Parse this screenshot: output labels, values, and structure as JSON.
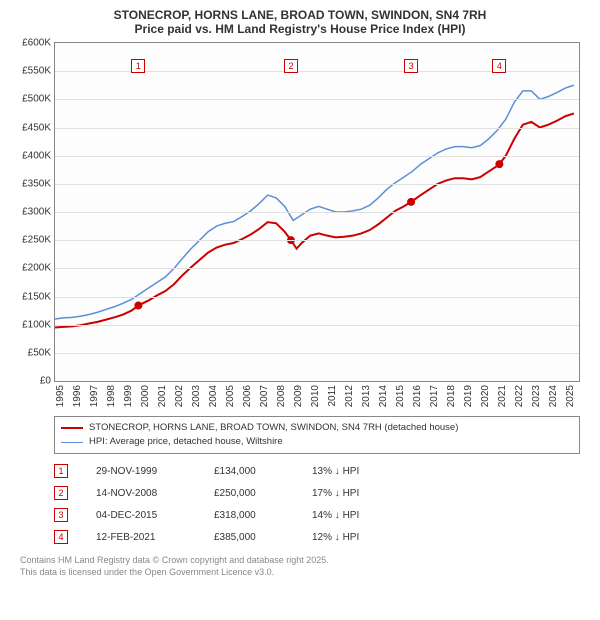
{
  "chart": {
    "type": "line",
    "title_line1": "STONECROP, HORNS LANE, BROAD TOWN, SWINDON, SN4 7RH",
    "title_line2": "Price paid vs. HM Land Registry's House Price Index (HPI)",
    "title_fontsize": 12,
    "background_color": "#ffffff",
    "grid_color": "#e0e0e0",
    "axis_color": "#888888",
    "x": {
      "min": 1995,
      "max": 2025.8,
      "ticks": [
        1995,
        1996,
        1997,
        1998,
        1999,
        2000,
        2001,
        2002,
        2003,
        2004,
        2005,
        2006,
        2007,
        2008,
        2009,
        2010,
        2011,
        2012,
        2013,
        2014,
        2015,
        2016,
        2017,
        2018,
        2019,
        2020,
        2021,
        2022,
        2023,
        2024,
        2025
      ]
    },
    "y": {
      "min": 0,
      "max": 600000,
      "ticks": [
        0,
        50000,
        100000,
        150000,
        200000,
        250000,
        300000,
        350000,
        400000,
        450000,
        500000,
        550000,
        600000
      ],
      "tick_labels": [
        "£0",
        "£50K",
        "£100K",
        "£150K",
        "£200K",
        "£250K",
        "£300K",
        "£350K",
        "£400K",
        "£450K",
        "£500K",
        "£550K",
        "£600K"
      ]
    },
    "series": [
      {
        "name": "property",
        "label": "STONECROP, HORNS LANE, BROAD TOWN, SWINDON, SN4 7RH (detached house)",
        "color": "#cc0000",
        "line_width": 2,
        "points": [
          [
            1995.0,
            95000
          ],
          [
            1995.5,
            96000
          ],
          [
            1996.0,
            97000
          ],
          [
            1996.5,
            99000
          ],
          [
            1997.0,
            102000
          ],
          [
            1997.5,
            105000
          ],
          [
            1998.0,
            109000
          ],
          [
            1998.5,
            113000
          ],
          [
            1999.0,
            118000
          ],
          [
            1999.5,
            125000
          ],
          [
            1999.9,
            134000
          ],
          [
            2000.5,
            143000
          ],
          [
            2001.0,
            152000
          ],
          [
            2001.5,
            160000
          ],
          [
            2002.0,
            172000
          ],
          [
            2002.5,
            188000
          ],
          [
            2003.0,
            202000
          ],
          [
            2003.5,
            215000
          ],
          [
            2004.0,
            228000
          ],
          [
            2004.5,
            237000
          ],
          [
            2005.0,
            242000
          ],
          [
            2005.5,
            245000
          ],
          [
            2006.0,
            252000
          ],
          [
            2006.5,
            260000
          ],
          [
            2007.0,
            270000
          ],
          [
            2007.5,
            282000
          ],
          [
            2008.0,
            280000
          ],
          [
            2008.5,
            265000
          ],
          [
            2008.87,
            250000
          ],
          [
            2009.2,
            235000
          ],
          [
            2009.5,
            245000
          ],
          [
            2010.0,
            258000
          ],
          [
            2010.5,
            262000
          ],
          [
            2011.0,
            258000
          ],
          [
            2011.5,
            255000
          ],
          [
            2012.0,
            256000
          ],
          [
            2012.5,
            258000
          ],
          [
            2013.0,
            262000
          ],
          [
            2013.5,
            268000
          ],
          [
            2014.0,
            278000
          ],
          [
            2014.5,
            290000
          ],
          [
            2015.0,
            302000
          ],
          [
            2015.5,
            310000
          ],
          [
            2015.93,
            318000
          ],
          [
            2016.5,
            330000
          ],
          [
            2017.0,
            340000
          ],
          [
            2017.5,
            350000
          ],
          [
            2018.0,
            356000
          ],
          [
            2018.5,
            360000
          ],
          [
            2019.0,
            360000
          ],
          [
            2019.5,
            358000
          ],
          [
            2020.0,
            362000
          ],
          [
            2020.5,
            372000
          ],
          [
            2021.0,
            382000
          ],
          [
            2021.12,
            385000
          ],
          [
            2021.5,
            400000
          ],
          [
            2022.0,
            430000
          ],
          [
            2022.5,
            455000
          ],
          [
            2023.0,
            460000
          ],
          [
            2023.5,
            450000
          ],
          [
            2024.0,
            455000
          ],
          [
            2024.5,
            462000
          ],
          [
            2025.0,
            470000
          ],
          [
            2025.5,
            475000
          ]
        ],
        "markers": [
          {
            "x": 1999.9,
            "y": 134000
          },
          {
            "x": 2008.87,
            "y": 250000
          },
          {
            "x": 2015.93,
            "y": 318000
          },
          {
            "x": 2021.12,
            "y": 385000
          }
        ],
        "marker_color": "#cc0000",
        "marker_radius": 4
      },
      {
        "name": "hpi",
        "label": "HPI: Average price, detached house, Wiltshire",
        "color": "#5b8fd6",
        "line_width": 1.5,
        "points": [
          [
            1995.0,
            110000
          ],
          [
            1995.5,
            112000
          ],
          [
            1996.0,
            113000
          ],
          [
            1996.5,
            115000
          ],
          [
            1997.0,
            118000
          ],
          [
            1997.5,
            122000
          ],
          [
            1998.0,
            127000
          ],
          [
            1998.5,
            132000
          ],
          [
            1999.0,
            138000
          ],
          [
            1999.5,
            145000
          ],
          [
            2000.0,
            155000
          ],
          [
            2000.5,
            165000
          ],
          [
            2001.0,
            175000
          ],
          [
            2001.5,
            185000
          ],
          [
            2002.0,
            200000
          ],
          [
            2002.5,
            218000
          ],
          [
            2003.0,
            235000
          ],
          [
            2003.5,
            250000
          ],
          [
            2004.0,
            265000
          ],
          [
            2004.5,
            275000
          ],
          [
            2005.0,
            280000
          ],
          [
            2005.5,
            283000
          ],
          [
            2006.0,
            292000
          ],
          [
            2006.5,
            302000
          ],
          [
            2007.0,
            315000
          ],
          [
            2007.5,
            330000
          ],
          [
            2008.0,
            325000
          ],
          [
            2008.5,
            310000
          ],
          [
            2009.0,
            285000
          ],
          [
            2009.5,
            295000
          ],
          [
            2010.0,
            305000
          ],
          [
            2010.5,
            310000
          ],
          [
            2011.0,
            305000
          ],
          [
            2011.5,
            300000
          ],
          [
            2012.0,
            300000
          ],
          [
            2012.5,
            302000
          ],
          [
            2013.0,
            305000
          ],
          [
            2013.5,
            312000
          ],
          [
            2014.0,
            325000
          ],
          [
            2014.5,
            340000
          ],
          [
            2015.0,
            352000
          ],
          [
            2015.5,
            362000
          ],
          [
            2016.0,
            372000
          ],
          [
            2016.5,
            385000
          ],
          [
            2017.0,
            395000
          ],
          [
            2017.5,
            405000
          ],
          [
            2018.0,
            412000
          ],
          [
            2018.5,
            416000
          ],
          [
            2019.0,
            416000
          ],
          [
            2019.5,
            414000
          ],
          [
            2020.0,
            418000
          ],
          [
            2020.5,
            430000
          ],
          [
            2021.0,
            445000
          ],
          [
            2021.5,
            465000
          ],
          [
            2022.0,
            495000
          ],
          [
            2022.5,
            515000
          ],
          [
            2023.0,
            515000
          ],
          [
            2023.5,
            500000
          ],
          [
            2024.0,
            505000
          ],
          [
            2024.5,
            512000
          ],
          [
            2025.0,
            520000
          ],
          [
            2025.5,
            525000
          ]
        ]
      }
    ],
    "annotations": [
      {
        "n": "1",
        "x": 1999.9,
        "y_top": 560000
      },
      {
        "n": "2",
        "x": 2008.87,
        "y_top": 560000
      },
      {
        "n": "3",
        "x": 2015.93,
        "y_top": 560000
      },
      {
        "n": "4",
        "x": 2021.12,
        "y_top": 560000
      }
    ],
    "annotation_border_color": "#cc0000"
  },
  "legend": {
    "items": [
      {
        "color": "#cc0000",
        "label": "STONECROP, HORNS LANE, BROAD TOWN, SWINDON, SN4 7RH (detached house)",
        "width": 2
      },
      {
        "color": "#5b8fd6",
        "label": "HPI: Average price, detached house, Wiltshire",
        "width": 1.5
      }
    ]
  },
  "sales": [
    {
      "n": "1",
      "date": "29-NOV-1999",
      "price": "£134,000",
      "delta": "13% ↓ HPI"
    },
    {
      "n": "2",
      "date": "14-NOV-2008",
      "price": "£250,000",
      "delta": "17% ↓ HPI"
    },
    {
      "n": "3",
      "date": "04-DEC-2015",
      "price": "£318,000",
      "delta": "14% ↓ HPI"
    },
    {
      "n": "4",
      "date": "12-FEB-2021",
      "price": "£385,000",
      "delta": "12% ↓ HPI"
    }
  ],
  "footer": {
    "line1": "Contains HM Land Registry data © Crown copyright and database right 2025.",
    "line2": "This data is licensed under the Open Government Licence v3.0."
  }
}
